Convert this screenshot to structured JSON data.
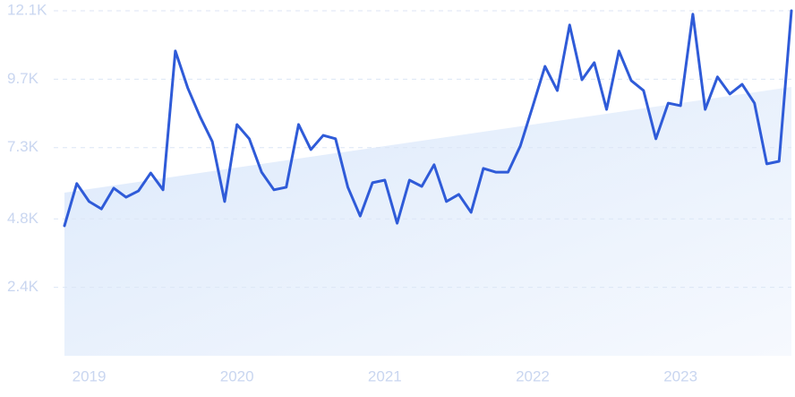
{
  "chart_data": {
    "type": "line",
    "categories": [
      null,
      null,
      "2019",
      null,
      null,
      null,
      null,
      null,
      null,
      null,
      null,
      null,
      null,
      null,
      "2020",
      null,
      null,
      null,
      null,
      null,
      null,
      null,
      null,
      null,
      null,
      null,
      "2021",
      null,
      null,
      null,
      null,
      null,
      null,
      null,
      null,
      null,
      null,
      null,
      "2022",
      null,
      null,
      null,
      null,
      null,
      null,
      null,
      null,
      null,
      null,
      null,
      "2023",
      null,
      null,
      null,
      null,
      null,
      null,
      null,
      null,
      null
    ],
    "values": [
      4560,
      6040,
      5410,
      5150,
      5880,
      5560,
      5780,
      6410,
      5820,
      10690,
      9400,
      8390,
      7510,
      5410,
      8110,
      7610,
      6440,
      5820,
      5910,
      8110,
      7230,
      7730,
      7610,
      5910,
      4900,
      6070,
      6160,
      4650,
      6160,
      5940,
      6700,
      5410,
      5660,
      5030,
      6570,
      6440,
      6440,
      7360,
      8740,
      10150,
      9300,
      11600,
      9680,
      10280,
      8640,
      10690,
      9650,
      9300,
      7610,
      8860,
      8770,
      11980,
      8640,
      9780,
      9180,
      9520,
      8860,
      6730,
      6820,
      12100
    ],
    "color": "#2f5bd8",
    "trend": [
      5720,
      9430
    ],
    "ylim": [
      0,
      12100
    ],
    "yticks": [
      {
        "value": 2400,
        "label": "2.4K"
      },
      {
        "value": 4800,
        "label": "4.8K"
      },
      {
        "value": 7300,
        "label": "7.3K"
      },
      {
        "value": 9700,
        "label": "9.7K"
      },
      {
        "value": 12100,
        "label": "12.1K"
      }
    ],
    "grid": true
  }
}
